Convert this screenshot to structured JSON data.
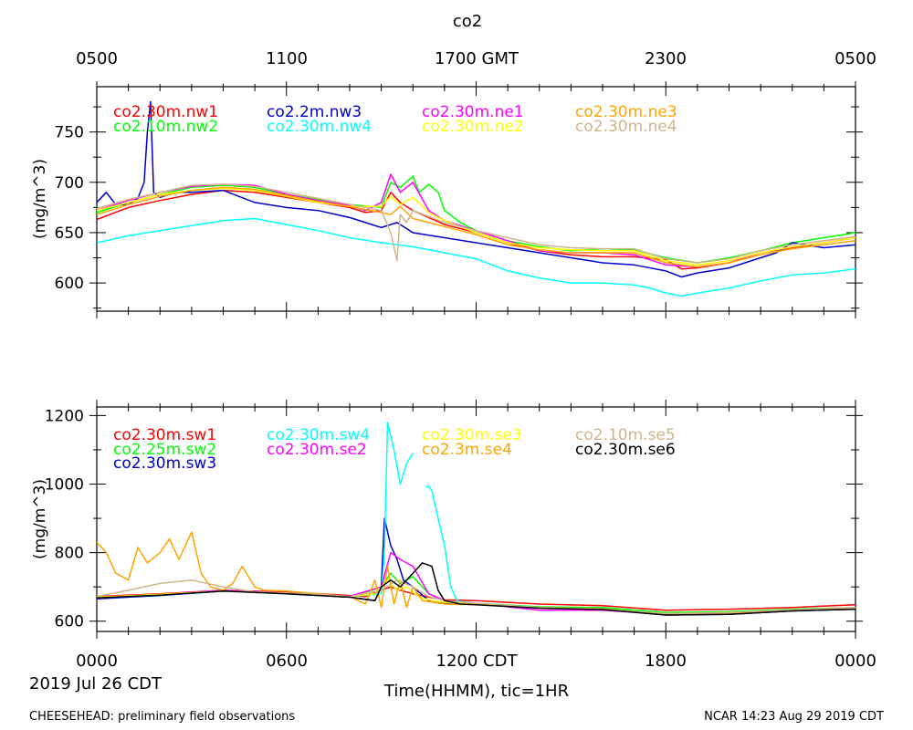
{
  "page": {
    "title": "co2",
    "top_axis_ticks": [
      "0500",
      "1100",
      "1700 GMT",
      "2300",
      "0500"
    ],
    "bottom_axis_ticks": [
      "0000",
      "0600",
      "1200 CDT",
      "1800",
      "0000"
    ],
    "date_label": "2019 Jul 26 CDT",
    "xlabel": "Time(HHMM), tic=1HR",
    "footer_left": "CHEESEHEAD: preliminary field observations",
    "footer_right": "NCAR 14:23 Aug 29 2019 CDT"
  },
  "chart_data": [
    {
      "type": "line",
      "ylabel": "(mg/m^3)",
      "x_units": "hours CDT",
      "xlim": [
        0,
        24
      ],
      "ylim": [
        572,
        795
      ],
      "yticks": [
        600,
        650,
        700,
        750
      ],
      "ytick_labels": [
        "600",
        "650",
        "700",
        "750"
      ],
      "series": [
        {
          "name": "co2.30m.nw1",
          "color": "#ff0000",
          "x": [
            0,
            1,
            2,
            3,
            4,
            5,
            6,
            7,
            8,
            8.5,
            9,
            9.3,
            9.6,
            10,
            10.5,
            11,
            12,
            13,
            14,
            15,
            16,
            17,
            18,
            18.5,
            19,
            20,
            21,
            22,
            23,
            24
          ],
          "y": [
            663,
            675,
            682,
            688,
            692,
            690,
            685,
            680,
            675,
            670,
            672,
            690,
            680,
            672,
            665,
            658,
            650,
            640,
            632,
            628,
            626,
            626,
            623,
            614,
            615,
            620,
            630,
            635,
            640,
            645
          ]
        },
        {
          "name": "co2.10m.nw2",
          "color": "#00ff00",
          "x": [
            0,
            1,
            2,
            3,
            4,
            5,
            6,
            7,
            8,
            9,
            9.3,
            9.6,
            10,
            10.2,
            10.5,
            10.8,
            11,
            11.5,
            12,
            13,
            14,
            15,
            16,
            17,
            18,
            19,
            20,
            21,
            22,
            23,
            24
          ],
          "y": [
            670,
            680,
            688,
            695,
            697,
            695,
            688,
            683,
            678,
            675,
            700,
            695,
            706,
            690,
            698,
            690,
            672,
            660,
            652,
            642,
            636,
            632,
            634,
            633,
            625,
            620,
            625,
            632,
            640,
            645,
            650
          ]
        },
        {
          "name": "co2.2m.nw3",
          "color": "#0000cc",
          "x": [
            0,
            0.3,
            0.6,
            1,
            1.3,
            1.5,
            1.6,
            1.7,
            1.8,
            2,
            2.5,
            3,
            4,
            5,
            6,
            7,
            8,
            9,
            9.5,
            10,
            11,
            12,
            13,
            14,
            15,
            16,
            17,
            18,
            18.5,
            19,
            20,
            21,
            21.5,
            22,
            23,
            24
          ],
          "y": [
            680,
            690,
            678,
            678,
            684,
            700,
            750,
            780,
            690,
            685,
            690,
            690,
            692,
            680,
            675,
            672,
            665,
            655,
            660,
            650,
            645,
            640,
            635,
            630,
            625,
            620,
            618,
            612,
            606,
            610,
            615,
            625,
            630,
            640,
            635,
            638
          ]
        },
        {
          "name": "co2.30m.nw4",
          "color": "#00ffff",
          "x": [
            0,
            1,
            2,
            3,
            4,
            5,
            6,
            7,
            8,
            9,
            10,
            11,
            12,
            13,
            14,
            15,
            16,
            17,
            17.5,
            18,
            18.5,
            19,
            20,
            21,
            22,
            23,
            24
          ],
          "y": [
            640,
            647,
            652,
            657,
            662,
            664,
            658,
            652,
            645,
            640,
            636,
            630,
            624,
            612,
            605,
            600,
            600,
            598,
            595,
            590,
            587,
            590,
            595,
            602,
            608,
            610,
            614
          ]
        },
        {
          "name": "co2.30m.ne1",
          "color": "#ff00ff",
          "x": [
            0,
            1,
            2,
            3,
            4,
            5,
            6,
            7,
            8,
            8.5,
            9,
            9.3,
            9.6,
            10,
            10.5,
            11,
            12,
            13,
            14,
            15,
            16,
            17,
            18,
            19,
            20,
            21,
            22,
            23,
            24
          ],
          "y": [
            672,
            682,
            690,
            696,
            698,
            697,
            688,
            682,
            677,
            672,
            680,
            708,
            690,
            700,
            672,
            662,
            652,
            642,
            632,
            630,
            630,
            628,
            618,
            616,
            620,
            630,
            636,
            640,
            645
          ]
        },
        {
          "name": "co2.30m.ne2",
          "color": "#ffff00",
          "x": [
            0,
            1,
            2,
            3,
            4,
            5,
            6,
            7,
            8,
            9,
            9.3,
            9.6,
            10,
            10.5,
            11,
            12,
            13,
            14,
            15,
            16,
            17,
            18,
            19,
            20,
            21,
            22,
            23,
            24
          ],
          "y": [
            672,
            680,
            688,
            692,
            694,
            692,
            686,
            680,
            676,
            676,
            686,
            678,
            685,
            670,
            662,
            650,
            640,
            635,
            633,
            632,
            632,
            622,
            618,
            622,
            630,
            636,
            640,
            645
          ]
        },
        {
          "name": "co2.30m.ne3",
          "color": "#ffa500",
          "x": [
            0,
            1,
            2,
            3,
            4,
            5,
            6,
            7,
            8,
            9,
            9.3,
            9.6,
            10,
            10.5,
            11,
            12,
            13,
            14,
            15,
            16,
            17,
            18,
            19,
            20,
            21,
            22,
            23,
            24
          ],
          "y": [
            668,
            678,
            686,
            692,
            695,
            693,
            687,
            681,
            676,
            670,
            668,
            676,
            664,
            660,
            656,
            648,
            638,
            633,
            630,
            630,
            630,
            620,
            616,
            620,
            628,
            634,
            638,
            642
          ]
        },
        {
          "name": "co2.30m.ne4",
          "color": "#d2b48c",
          "x": [
            0,
            1,
            2,
            3,
            4,
            5,
            6,
            7,
            8,
            9,
            9.3,
            9.5,
            9.6,
            9.8,
            10,
            10.5,
            11,
            12,
            13,
            14,
            15,
            16,
            17,
            18,
            19,
            20,
            21,
            22,
            23,
            24
          ],
          "y": [
            674,
            683,
            690,
            697,
            698,
            696,
            690,
            684,
            678,
            672,
            650,
            622,
            668,
            660,
            672,
            666,
            660,
            652,
            645,
            638,
            635,
            634,
            634,
            624,
            620,
            624,
            632,
            638,
            642,
            646
          ]
        }
      ]
    },
    {
      "type": "line",
      "ylabel": "(mg/m^3)",
      "x_units": "hours CDT",
      "xlim": [
        0,
        24
      ],
      "ylim": [
        570,
        1225
      ],
      "yticks": [
        600,
        800,
        1000,
        1200
      ],
      "ytick_labels": [
        "600",
        "800",
        "1000",
        "1200"
      ],
      "series": [
        {
          "name": "co2.30m.sw1",
          "color": "#ff0000",
          "x": [
            0,
            2,
            4,
            6,
            8,
            8.5,
            9,
            9.3,
            9.6,
            10,
            10.5,
            11,
            12,
            14,
            16,
            18,
            20,
            22,
            24
          ],
          "y": [
            672,
            680,
            690,
            685,
            675,
            672,
            690,
            700,
            690,
            680,
            670,
            662,
            660,
            650,
            645,
            632,
            635,
            640,
            648
          ]
        },
        {
          "name": "co2.25m.sw2",
          "color": "#00ff00",
          "x": [
            0,
            2,
            4,
            6,
            8,
            8.7,
            9,
            9.3,
            9.6,
            10,
            10.5,
            11,
            12,
            14,
            16,
            18,
            20,
            22,
            24
          ],
          "y": [
            668,
            677,
            688,
            682,
            672,
            690,
            700,
            740,
            710,
            730,
            680,
            660,
            652,
            642,
            640,
            625,
            628,
            635,
            640
          ]
        },
        {
          "name": "co2.30m.sw3",
          "color": "#0000cc",
          "x": [
            0,
            2,
            4,
            6,
            8,
            8.8,
            9,
            9.1,
            9.3,
            9.5,
            9.7,
            10,
            10.5,
            11,
            12,
            14,
            16,
            18,
            20,
            22,
            24
          ],
          "y": [
            665,
            675,
            688,
            680,
            670,
            660,
            700,
            900,
            820,
            780,
            720,
            700,
            660,
            652,
            650,
            640,
            635,
            618,
            620,
            630,
            635
          ]
        },
        {
          "name": "co2.30m.sw4",
          "color": "#00ffff",
          "x": [
            0,
            2,
            4,
            6,
            8,
            9,
            9.1,
            9.2,
            9.4,
            9.6,
            9.8,
            10,
            10.2,
            10.4,
            10.5,
            10.6,
            10.8,
            11,
            11.2,
            11.4,
            12,
            14,
            16,
            18,
            20,
            22,
            24
          ],
          "y": [
            668,
            676,
            688,
            680,
            672,
            680,
            800,
            1180,
            1100,
            1000,
            1060,
            1090,
            null,
            990,
            995,
            980,
            900,
            820,
            700,
            660,
            650,
            640,
            636,
            620,
            624,
            632,
            638
          ]
        },
        {
          "name": "co2.30m.se2",
          "color": "#ff00ff",
          "x": [
            0,
            2,
            4,
            6,
            8,
            9,
            9.3,
            9.6,
            10,
            10.5,
            11,
            12,
            14,
            16,
            18,
            20,
            22,
            24
          ],
          "y": [
            670,
            678,
            690,
            682,
            673,
            700,
            800,
            780,
            760,
            680,
            660,
            652,
            632,
            632,
            620,
            624,
            632,
            640
          ]
        },
        {
          "name": "co2.30m.se3",
          "color": "#ffff00",
          "x": [
            0,
            2,
            4,
            6,
            8,
            8.8,
            9.2,
            9.5,
            9.8,
            10.2,
            10.6,
            11,
            12,
            14,
            16,
            18,
            20,
            22,
            24
          ],
          "y": [
            670,
            678,
            688,
            680,
            672,
            680,
            720,
            690,
            700,
            670,
            660,
            655,
            650,
            640,
            635,
            622,
            625,
            632,
            638
          ]
        },
        {
          "name": "co2.3m.se4",
          "color": "#ffa500",
          "x": [
            0,
            0.3,
            0.6,
            1,
            1.3,
            1.6,
            2,
            2.3,
            2.6,
            3,
            3.3,
            3.6,
            4,
            4.3,
            4.6,
            5,
            5.3,
            6,
            7,
            8,
            8.5,
            8.8,
            9,
            9.2,
            9.4,
            9.6,
            9.8,
            10,
            10.3,
            11,
            12,
            14,
            16,
            18,
            20,
            22,
            24
          ],
          "y": [
            830,
            800,
            740,
            720,
            815,
            770,
            800,
            840,
            780,
            860,
            740,
            700,
            690,
            710,
            760,
            700,
            690,
            688,
            680,
            672,
            650,
            720,
            640,
            760,
            650,
            720,
            640,
            700,
            660,
            650,
            648,
            640,
            636,
            620,
            624,
            632,
            638
          ]
        },
        {
          "name": "co2.10m.se5",
          "color": "#d2b48c",
          "x": [
            0,
            1,
            2,
            3,
            4,
            5,
            6,
            7,
            8,
            9,
            9.5,
            10,
            10.5,
            11,
            12,
            14,
            16,
            18,
            20,
            22,
            24
          ],
          "y": [
            672,
            690,
            710,
            720,
            700,
            685,
            682,
            678,
            672,
            690,
            720,
            700,
            672,
            660,
            652,
            640,
            635,
            622,
            625,
            633,
            640
          ]
        },
        {
          "name": "co2.30m.se6",
          "color": "#000000",
          "x": [
            0,
            2,
            4,
            6,
            8,
            8.8,
            9,
            9.3,
            9.6,
            10,
            10.3,
            10.6,
            10.8,
            11,
            11.5,
            12,
            14,
            16,
            18,
            20,
            22,
            24
          ],
          "y": [
            668,
            676,
            688,
            680,
            670,
            660,
            700,
            720,
            700,
            740,
            770,
            760,
            690,
            660,
            650,
            648,
            638,
            634,
            618,
            620,
            630,
            635
          ]
        }
      ]
    }
  ]
}
